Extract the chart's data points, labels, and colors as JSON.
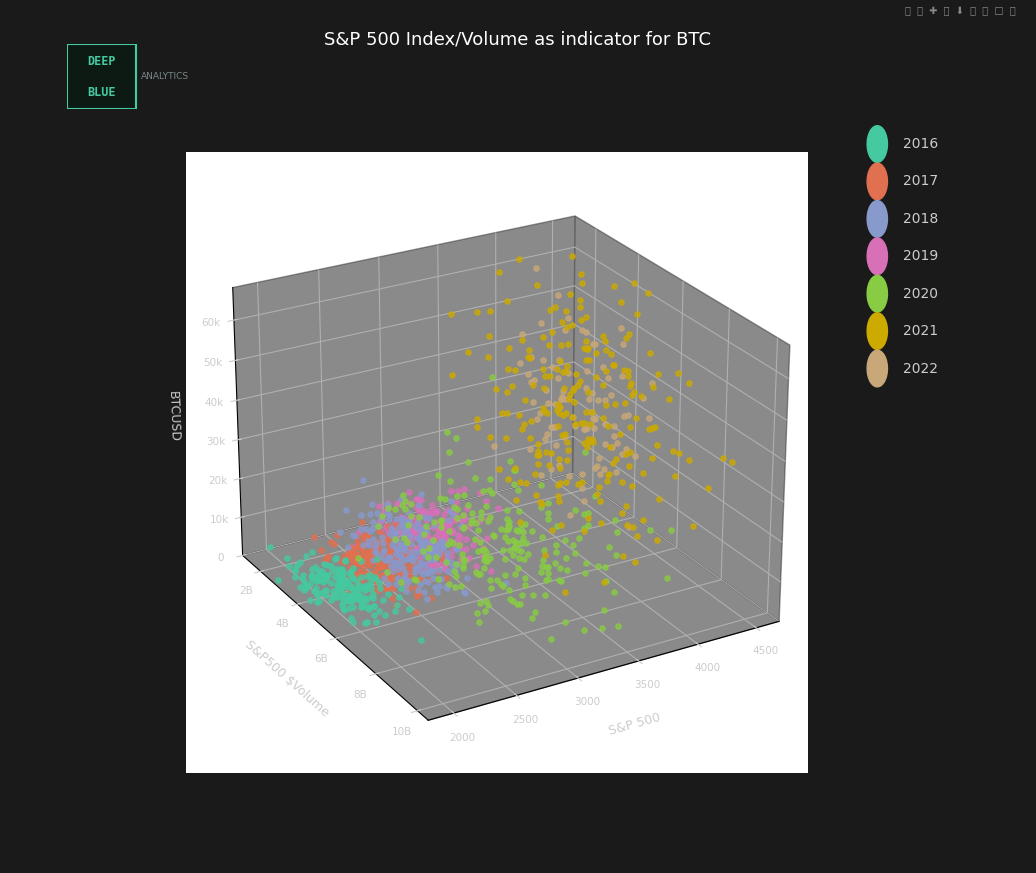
{
  "title": "S&P 500 Index/Volume as indicator for BTC",
  "background_color": "#1a1a1a",
  "plot_bg_color": "#111111",
  "years": [
    2016,
    2017,
    2018,
    2019,
    2020,
    2021,
    2022
  ],
  "year_colors": {
    "2016": "#45c9a0",
    "2017": "#e07050",
    "2018": "#8899cc",
    "2019": "#d870b8",
    "2020": "#88cc44",
    "2021": "#ccaa00",
    "2022": "#c8a878"
  },
  "xlabel": "S&P 500",
  "ylabel": "S&P500 $Volume",
  "zlabel": "BTCUSD",
  "logo_text_line1": "DEEP",
  "logo_text_line2": "BLUE",
  "logo_subtext": "ANALYTICS",
  "text_color": "#cccccc",
  "elev": 25,
  "azim": 60
}
